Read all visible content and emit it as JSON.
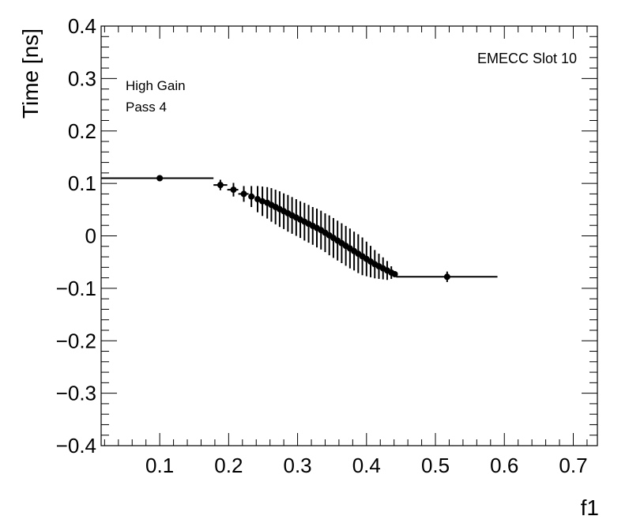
{
  "chart_data": {
    "type": "scatter",
    "xlabel": "f1",
    "ylabel": "Time [ns]",
    "xlim": [
      0.015,
      0.735
    ],
    "ylim": [
      -0.4,
      0.4
    ],
    "x_ticks": [
      0.1,
      0.2,
      0.3,
      0.4,
      0.5,
      0.6,
      0.7
    ],
    "x_tick_labels": [
      "0.1",
      "0.2",
      "0.3",
      "0.4",
      "0.5",
      "0.6",
      "0.7"
    ],
    "y_ticks": [
      -0.4,
      -0.3,
      -0.2,
      -0.1,
      0,
      0.1,
      0.2,
      0.3,
      0.4
    ],
    "y_tick_labels": [
      "−0.4",
      "−0.3",
      "−0.2",
      "−0.1",
      "0",
      "0.1",
      "0.2",
      "0.3",
      "0.4"
    ],
    "annotations": {
      "top_right": "EMECC Slot 10",
      "line1": "High Gain",
      "line2": "Pass 4"
    },
    "grid": false,
    "points": [
      {
        "x": 0.1,
        "y": 0.11,
        "xlo": 0.015,
        "xhi": 0.178,
        "err": 0.004
      },
      {
        "x": 0.188,
        "y": 0.097,
        "xlo": 0.178,
        "xhi": 0.198,
        "err": 0.01
      },
      {
        "x": 0.207,
        "y": 0.088,
        "xlo": 0.198,
        "xhi": 0.214,
        "err": 0.013
      },
      {
        "x": 0.222,
        "y": 0.08,
        "xlo": 0.214,
        "xhi": 0.229,
        "err": 0.015
      },
      {
        "x": 0.233,
        "y": 0.075,
        "xlo": 0.229,
        "xhi": 0.238,
        "err": 0.02
      },
      {
        "x": 0.242,
        "y": 0.07,
        "xlo": 0.238,
        "xhi": 0.246,
        "err": 0.025
      },
      {
        "x": 0.249,
        "y": 0.066,
        "xlo": 0.246,
        "xhi": 0.252,
        "err": 0.028
      },
      {
        "x": 0.256,
        "y": 0.063,
        "xlo": 0.252,
        "xhi": 0.259,
        "err": 0.03
      },
      {
        "x": 0.262,
        "y": 0.059,
        "xlo": 0.259,
        "xhi": 0.265,
        "err": 0.032
      },
      {
        "x": 0.268,
        "y": 0.055,
        "xlo": 0.265,
        "xhi": 0.271,
        "err": 0.033
      },
      {
        "x": 0.274,
        "y": 0.051,
        "xlo": 0.271,
        "xhi": 0.277,
        "err": 0.034
      },
      {
        "x": 0.28,
        "y": 0.047,
        "xlo": 0.277,
        "xhi": 0.283,
        "err": 0.034
      },
      {
        "x": 0.286,
        "y": 0.043,
        "xlo": 0.283,
        "xhi": 0.289,
        "err": 0.035
      },
      {
        "x": 0.292,
        "y": 0.039,
        "xlo": 0.289,
        "xhi": 0.295,
        "err": 0.035
      },
      {
        "x": 0.298,
        "y": 0.035,
        "xlo": 0.295,
        "xhi": 0.301,
        "err": 0.035
      },
      {
        "x": 0.304,
        "y": 0.031,
        "xlo": 0.301,
        "xhi": 0.307,
        "err": 0.035
      },
      {
        "x": 0.31,
        "y": 0.027,
        "xlo": 0.307,
        "xhi": 0.313,
        "err": 0.036
      },
      {
        "x": 0.316,
        "y": 0.023,
        "xlo": 0.313,
        "xhi": 0.319,
        "err": 0.036
      },
      {
        "x": 0.322,
        "y": 0.019,
        "xlo": 0.319,
        "xhi": 0.325,
        "err": 0.036
      },
      {
        "x": 0.328,
        "y": 0.015,
        "xlo": 0.325,
        "xhi": 0.331,
        "err": 0.037
      },
      {
        "x": 0.334,
        "y": 0.011,
        "xlo": 0.331,
        "xhi": 0.337,
        "err": 0.037
      },
      {
        "x": 0.34,
        "y": 0.006,
        "xlo": 0.337,
        "xhi": 0.343,
        "err": 0.037
      },
      {
        "x": 0.346,
        "y": 0.001,
        "xlo": 0.343,
        "xhi": 0.349,
        "err": 0.038
      },
      {
        "x": 0.352,
        "y": -0.004,
        "xlo": 0.349,
        "xhi": 0.355,
        "err": 0.038
      },
      {
        "x": 0.358,
        "y": -0.009,
        "xlo": 0.355,
        "xhi": 0.361,
        "err": 0.038
      },
      {
        "x": 0.364,
        "y": -0.014,
        "xlo": 0.361,
        "xhi": 0.367,
        "err": 0.038
      },
      {
        "x": 0.37,
        "y": -0.019,
        "xlo": 0.367,
        "xhi": 0.373,
        "err": 0.038
      },
      {
        "x": 0.376,
        "y": -0.024,
        "xlo": 0.373,
        "xhi": 0.379,
        "err": 0.038
      },
      {
        "x": 0.382,
        "y": -0.029,
        "xlo": 0.379,
        "xhi": 0.385,
        "err": 0.037
      },
      {
        "x": 0.388,
        "y": -0.034,
        "xlo": 0.385,
        "xhi": 0.391,
        "err": 0.037
      },
      {
        "x": 0.394,
        "y": -0.039,
        "xlo": 0.391,
        "xhi": 0.397,
        "err": 0.036
      },
      {
        "x": 0.4,
        "y": -0.044,
        "xlo": 0.397,
        "xhi": 0.403,
        "err": 0.033
      },
      {
        "x": 0.406,
        "y": -0.049,
        "xlo": 0.403,
        "xhi": 0.409,
        "err": 0.03
      },
      {
        "x": 0.412,
        "y": -0.054,
        "xlo": 0.409,
        "xhi": 0.415,
        "err": 0.027
      },
      {
        "x": 0.418,
        "y": -0.058,
        "xlo": 0.415,
        "xhi": 0.421,
        "err": 0.024
      },
      {
        "x": 0.424,
        "y": -0.062,
        "xlo": 0.421,
        "xhi": 0.427,
        "err": 0.021
      },
      {
        "x": 0.43,
        "y": -0.066,
        "xlo": 0.427,
        "xhi": 0.433,
        "err": 0.018
      },
      {
        "x": 0.436,
        "y": -0.07,
        "xlo": 0.433,
        "xhi": 0.439,
        "err": 0.012
      },
      {
        "x": 0.441,
        "y": -0.073,
        "xlo": 0.439,
        "xhi": 0.443,
        "err": 0.005
      },
      {
        "x": 0.517,
        "y": -0.078,
        "xlo": 0.443,
        "xhi": 0.59,
        "err": 0.01
      }
    ]
  }
}
